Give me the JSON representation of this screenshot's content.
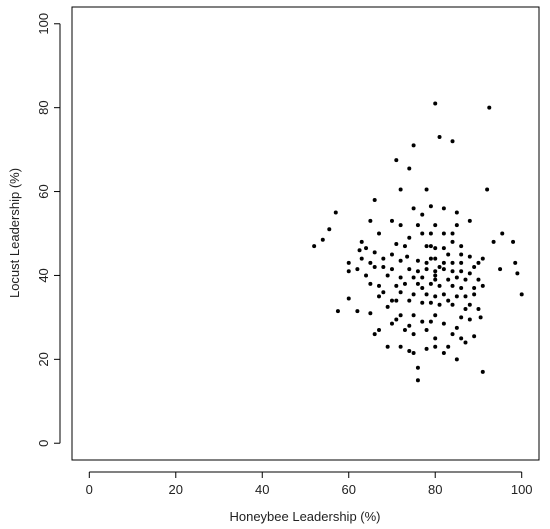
{
  "chart_data": {
    "type": "scatter",
    "title": "",
    "xlabel": "Honeybee Leadership (%)",
    "ylabel": "Locust Leadership (%)",
    "xlim": [
      -4,
      104
    ],
    "ylim": [
      -4,
      104
    ],
    "xticks": [
      0,
      20,
      40,
      60,
      80,
      100
    ],
    "yticks": [
      0,
      20,
      40,
      60,
      80,
      100
    ],
    "grid": false,
    "marker_color": "#000000",
    "points": [
      [
        80,
        81
      ],
      [
        92.5,
        80
      ],
      [
        81,
        73
      ],
      [
        84,
        72
      ],
      [
        75,
        71
      ],
      [
        71,
        67.5
      ],
      [
        74,
        65.5
      ],
      [
        72,
        60.5
      ],
      [
        78,
        60.5
      ],
      [
        92,
        60.5
      ],
      [
        66,
        58
      ],
      [
        79,
        56.5
      ],
      [
        82,
        56
      ],
      [
        75,
        56
      ],
      [
        77,
        54.5
      ],
      [
        85,
        55
      ],
      [
        57,
        55
      ],
      [
        65,
        53
      ],
      [
        70,
        53
      ],
      [
        88,
        53
      ],
      [
        55.5,
        51
      ],
      [
        67,
        50
      ],
      [
        77,
        50
      ],
      [
        79,
        50
      ],
      [
        82,
        50
      ],
      [
        84,
        50
      ],
      [
        95.5,
        50
      ],
      [
        74,
        49
      ],
      [
        54,
        48.5
      ],
      [
        93.5,
        48
      ],
      [
        63,
        48
      ],
      [
        71,
        47.5
      ],
      [
        79,
        47
      ],
      [
        80,
        46.5
      ],
      [
        82,
        46.5
      ],
      [
        98,
        48
      ],
      [
        86,
        47
      ],
      [
        52,
        47
      ],
      [
        64,
        46.5
      ],
      [
        62.5,
        46
      ],
      [
        66,
        45.5
      ],
      [
        70,
        45
      ],
      [
        73.5,
        44.5
      ],
      [
        80,
        44
      ],
      [
        88,
        44.5
      ],
      [
        91,
        44
      ],
      [
        60,
        43
      ],
      [
        65,
        43
      ],
      [
        72,
        43.5
      ],
      [
        76,
        43.5
      ],
      [
        78,
        43
      ],
      [
        82,
        43
      ],
      [
        84,
        43
      ],
      [
        86,
        43
      ],
      [
        90,
        43
      ],
      [
        98.5,
        43
      ],
      [
        62,
        41.5
      ],
      [
        66,
        42
      ],
      [
        68,
        42
      ],
      [
        70,
        41.5
      ],
      [
        74,
        41.5
      ],
      [
        76,
        41
      ],
      [
        78,
        41.5
      ],
      [
        80,
        41
      ],
      [
        82,
        41.5
      ],
      [
        84,
        41
      ],
      [
        86,
        41
      ],
      [
        88,
        40.5
      ],
      [
        95,
        41.5
      ],
      [
        99,
        40.5
      ],
      [
        64,
        40
      ],
      [
        69,
        40
      ],
      [
        72,
        39.5
      ],
      [
        75,
        39.5
      ],
      [
        77,
        39.5
      ],
      [
        80,
        39
      ],
      [
        83,
        39
      ],
      [
        85,
        39.5
      ],
      [
        87,
        39
      ],
      [
        90,
        39
      ],
      [
        65,
        38
      ],
      [
        67,
        37.5
      ],
      [
        71,
        37.5
      ],
      [
        73,
        38
      ],
      [
        76,
        38
      ],
      [
        79,
        38
      ],
      [
        81,
        37.5
      ],
      [
        84,
        37.5
      ],
      [
        86,
        37
      ],
      [
        91,
        37.5
      ],
      [
        68,
        36
      ],
      [
        72,
        36
      ],
      [
        75,
        35.5
      ],
      [
        78,
        35.5
      ],
      [
        80,
        35
      ],
      [
        82,
        35.5
      ],
      [
        85,
        35
      ],
      [
        87,
        35
      ],
      [
        89,
        35.5
      ],
      [
        100,
        35.5
      ],
      [
        60,
        34.5
      ],
      [
        70,
        34
      ],
      [
        74,
        34
      ],
      [
        77,
        33.5
      ],
      [
        79,
        33.5
      ],
      [
        83,
        34
      ],
      [
        84,
        33
      ],
      [
        88,
        33
      ],
      [
        90,
        32
      ],
      [
        69,
        32.5
      ],
      [
        62,
        31.5
      ],
      [
        57.5,
        31.5
      ],
      [
        65,
        31
      ],
      [
        72,
        30.5
      ],
      [
        75,
        30.5
      ],
      [
        80,
        30.5
      ],
      [
        86,
        30
      ],
      [
        90.5,
        30
      ],
      [
        88,
        29.5
      ],
      [
        71,
        29.5
      ],
      [
        77,
        29
      ],
      [
        79,
        29
      ],
      [
        82,
        28.5
      ],
      [
        70,
        28.5
      ],
      [
        74,
        28
      ],
      [
        85,
        27.5
      ],
      [
        67,
        27
      ],
      [
        73,
        27
      ],
      [
        78,
        27
      ],
      [
        84,
        26
      ],
      [
        66,
        26
      ],
      [
        80,
        25
      ],
      [
        86,
        25
      ],
      [
        89,
        25.5
      ],
      [
        69,
        23
      ],
      [
        72,
        23
      ],
      [
        80,
        23
      ],
      [
        87,
        24
      ],
      [
        74,
        22
      ],
      [
        75,
        21.5
      ],
      [
        78,
        22.5
      ],
      [
        82,
        21.5
      ],
      [
        85,
        20
      ],
      [
        91,
        17
      ],
      [
        76,
        18
      ],
      [
        76,
        15
      ],
      [
        80,
        40
      ],
      [
        81,
        42
      ],
      [
        79,
        44
      ],
      [
        83,
        45
      ],
      [
        67,
        35
      ],
      [
        71,
        34
      ],
      [
        89,
        42
      ],
      [
        89,
        37
      ],
      [
        73,
        47
      ],
      [
        78,
        47
      ],
      [
        84,
        48
      ],
      [
        86,
        45
      ],
      [
        63,
        44
      ],
      [
        68,
        44
      ],
      [
        75,
        26
      ],
      [
        83,
        23
      ],
      [
        87,
        32
      ],
      [
        77,
        37
      ],
      [
        81,
        33
      ],
      [
        60,
        41
      ],
      [
        85,
        52
      ],
      [
        80,
        52
      ],
      [
        72,
        52
      ],
      [
        76,
        52
      ]
    ]
  }
}
